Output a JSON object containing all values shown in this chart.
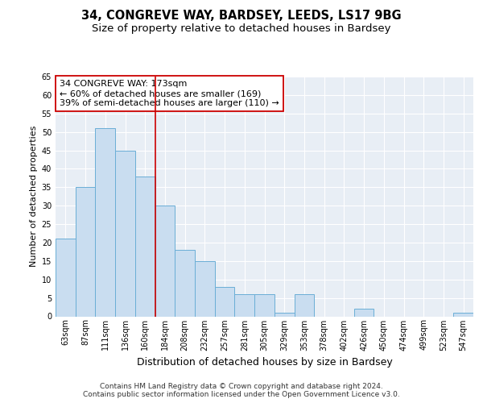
{
  "title": "34, CONGREVE WAY, BARDSEY, LEEDS, LS17 9BG",
  "subtitle": "Size of property relative to detached houses in Bardsey",
  "xlabel": "Distribution of detached houses by size in Bardsey",
  "ylabel": "Number of detached properties",
  "categories": [
    "63sqm",
    "87sqm",
    "111sqm",
    "136sqm",
    "160sqm",
    "184sqm",
    "208sqm",
    "232sqm",
    "257sqm",
    "281sqm",
    "305sqm",
    "329sqm",
    "353sqm",
    "378sqm",
    "402sqm",
    "426sqm",
    "450sqm",
    "474sqm",
    "499sqm",
    "523sqm",
    "547sqm"
  ],
  "values": [
    21,
    35,
    51,
    45,
    38,
    30,
    18,
    15,
    8,
    6,
    6,
    1,
    6,
    0,
    0,
    2,
    0,
    0,
    0,
    0,
    1
  ],
  "bar_color": "#c9ddf0",
  "bar_edge_color": "#6aaed6",
  "bar_linewidth": 0.7,
  "vline_x_idx": 5,
  "vline_color": "#cc0000",
  "vline_linewidth": 1.2,
  "annotation_title": "34 CONGREVE WAY: 173sqm",
  "annotation_line1": "← 60% of detached houses are smaller (169)",
  "annotation_line2": "39% of semi-detached houses are larger (110) →",
  "annotation_box_color": "#ffffff",
  "annotation_box_edge": "#cc0000",
  "ylim": [
    0,
    65
  ],
  "yticks": [
    0,
    5,
    10,
    15,
    20,
    25,
    30,
    35,
    40,
    45,
    50,
    55,
    60,
    65
  ],
  "fig_bg": "#ffffff",
  "plot_bg": "#e8eef5",
  "grid_color": "#ffffff",
  "footer_line1": "Contains HM Land Registry data © Crown copyright and database right 2024.",
  "footer_line2": "Contains public sector information licensed under the Open Government Licence v3.0.",
  "title_fontsize": 10.5,
  "subtitle_fontsize": 9.5,
  "xlabel_fontsize": 9,
  "ylabel_fontsize": 8,
  "tick_fontsize": 7,
  "annot_fontsize": 8,
  "footer_fontsize": 6.5
}
